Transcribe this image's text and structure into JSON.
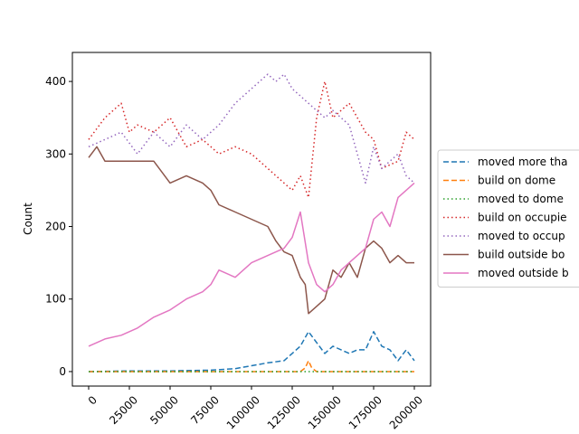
{
  "chart_data": {
    "type": "line",
    "title": "",
    "xlabel": "",
    "ylabel": "Count",
    "xlim": [
      -10000,
      210000
    ],
    "ylim": [
      -20,
      440
    ],
    "xticks": [
      0,
      25000,
      50000,
      75000,
      100000,
      125000,
      150000,
      175000,
      200000
    ],
    "xtick_labels": [
      "0",
      "25000",
      "50000",
      "75000",
      "100000",
      "125000",
      "150000",
      "175000",
      "200000"
    ],
    "yticks": [
      0,
      100,
      200,
      300,
      400
    ],
    "ytick_labels": [
      "0",
      "100",
      "200",
      "300",
      "400"
    ],
    "grid": false,
    "legend_position": "center-right outside",
    "series": [
      {
        "name": "moved more tha",
        "color": "#1f77b4",
        "dash": "dashed",
        "x": [
          0,
          25000,
          50000,
          75000,
          90000,
          100000,
          110000,
          120000,
          125000,
          130000,
          135000,
          140000,
          145000,
          150000,
          160000,
          165000,
          170000,
          175000,
          180000,
          185000,
          190000,
          195000,
          200000
        ],
        "y": [
          0,
          1,
          1,
          2,
          4,
          8,
          12,
          15,
          25,
          35,
          55,
          40,
          25,
          35,
          25,
          30,
          30,
          55,
          35,
          30,
          15,
          30,
          15
        ]
      },
      {
        "name": "build on dome",
        "color": "#ff7f0e",
        "dash": "dashed",
        "x": [
          0,
          50000,
          100000,
          130000,
          133000,
          135000,
          137000,
          140000,
          200000
        ],
        "y": [
          0,
          0,
          0,
          0,
          5,
          15,
          5,
          0,
          0
        ]
      },
      {
        "name": "moved to dome",
        "color": "#2ca02c",
        "dash": "dotted",
        "x": [
          0,
          100000,
          200000
        ],
        "y": [
          0,
          0,
          0
        ]
      },
      {
        "name": "build on occupie",
        "color": "#d62728",
        "dash": "dotted",
        "x": [
          0,
          10000,
          20000,
          25000,
          30000,
          40000,
          50000,
          60000,
          70000,
          80000,
          90000,
          100000,
          110000,
          120000,
          125000,
          130000,
          135000,
          140000,
          145000,
          150000,
          160000,
          170000,
          175000,
          180000,
          190000,
          195000,
          200000
        ],
        "y": [
          320,
          350,
          370,
          330,
          340,
          330,
          350,
          310,
          320,
          300,
          310,
          300,
          280,
          260,
          250,
          270,
          240,
          350,
          400,
          350,
          370,
          330,
          320,
          280,
          290,
          330,
          320
        ]
      },
      {
        "name": "moved to occup",
        "color": "#9467bd",
        "dash": "dotted",
        "x": [
          0,
          10000,
          20000,
          30000,
          40000,
          50000,
          60000,
          70000,
          80000,
          90000,
          100000,
          105000,
          110000,
          115000,
          120000,
          125000,
          130000,
          135000,
          140000,
          145000,
          150000,
          160000,
          170000,
          175000,
          180000,
          190000,
          195000,
          200000
        ],
        "y": [
          310,
          320,
          330,
          300,
          330,
          310,
          340,
          320,
          340,
          370,
          390,
          400,
          410,
          400,
          410,
          390,
          380,
          370,
          360,
          350,
          360,
          340,
          260,
          310,
          280,
          300,
          270,
          260
        ]
      },
      {
        "name": "build outside bo",
        "color": "#8c564b",
        "dash": "solid",
        "x": [
          0,
          5000,
          10000,
          20000,
          30000,
          40000,
          50000,
          60000,
          70000,
          75000,
          80000,
          90000,
          100000,
          110000,
          115000,
          120000,
          125000,
          130000,
          133000,
          135000,
          140000,
          145000,
          150000,
          155000,
          160000,
          165000,
          170000,
          175000,
          180000,
          185000,
          190000,
          195000,
          200000
        ],
        "y": [
          295,
          310,
          290,
          290,
          290,
          290,
          260,
          270,
          260,
          250,
          230,
          220,
          210,
          200,
          180,
          165,
          160,
          130,
          120,
          80,
          90,
          100,
          140,
          130,
          150,
          130,
          170,
          180,
          170,
          150,
          160,
          150,
          150
        ]
      },
      {
        "name": "moved outside b",
        "color": "#e377c2",
        "dash": "solid",
        "x": [
          0,
          5000,
          10000,
          20000,
          30000,
          40000,
          50000,
          60000,
          70000,
          75000,
          80000,
          90000,
          100000,
          110000,
          120000,
          125000,
          130000,
          135000,
          140000,
          145000,
          150000,
          155000,
          160000,
          170000,
          175000,
          180000,
          185000,
          190000,
          195000,
          200000
        ],
        "y": [
          35,
          40,
          45,
          50,
          60,
          75,
          85,
          100,
          110,
          120,
          140,
          130,
          150,
          160,
          170,
          185,
          220,
          150,
          120,
          110,
          120,
          140,
          150,
          170,
          210,
          220,
          200,
          240,
          250,
          260
        ]
      }
    ]
  }
}
